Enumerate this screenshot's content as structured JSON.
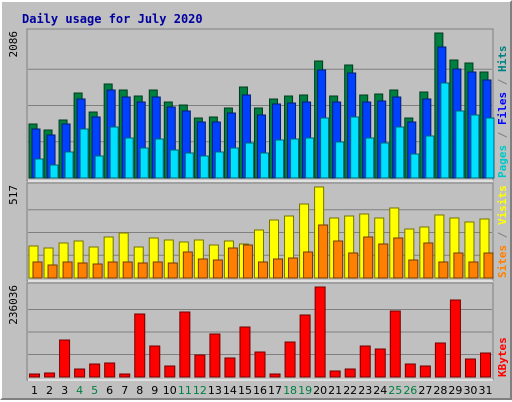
{
  "chart_data": {
    "title": "Daily usage for July 2020",
    "type": "bar",
    "days": [
      "1",
      "2",
      "3",
      "4",
      "5",
      "6",
      "7",
      "8",
      "9",
      "10",
      "11",
      "12",
      "13",
      "14",
      "15",
      "16",
      "17",
      "18",
      "19",
      "20",
      "21",
      "22",
      "23",
      "24",
      "25",
      "26",
      "27",
      "28",
      "29",
      "30",
      "31"
    ],
    "weekend_days": [
      "4",
      "5",
      "11",
      "12",
      "18",
      "19",
      "25",
      "26"
    ],
    "panels": [
      {
        "key": "hits",
        "max_label": "2086",
        "max": 2086,
        "right_labels": [
          {
            "text": "Pages",
            "color": "#00c8c8"
          },
          {
            "text": " / ",
            "color": "#808080"
          },
          {
            "text": "Files",
            "color": "#0000ff"
          },
          {
            "text": " / ",
            "color": "#808080"
          },
          {
            "text": "Hits",
            "color": "#008080"
          }
        ],
        "series": [
          {
            "name": "Hits",
            "color": "#008040",
            "values": [
              780,
              690,
              840,
              1230,
              950,
              1350,
              1260,
              1180,
              1270,
              1100,
              1050,
              870,
              880,
              1010,
              1310,
              1000,
              1130,
              1180,
              1200,
              1690,
              1180,
              1620,
              1200,
              1210,
              1270,
              860,
              1240,
              2086,
              1700,
              1650,
              1520
            ]
          },
          {
            "name": "Files",
            "color": "#0040ff",
            "values": [
              700,
              620,
              770,
              1130,
              880,
              1270,
              1160,
              1090,
              1170,
              1020,
              960,
              800,
              800,
              940,
              1200,
              910,
              1060,
              1080,
              1100,
              1560,
              1090,
              1510,
              1090,
              1110,
              1170,
              800,
              1140,
              1890,
              1570,
              1520,
              1410
            ]
          },
          {
            "name": "Pages",
            "color": "#00e0ff",
            "values": [
              270,
              190,
              380,
              710,
              320,
              740,
              580,
              430,
              560,
              400,
              360,
              320,
              380,
              430,
              510,
              360,
              550,
              560,
              570,
              860,
              520,
              880,
              570,
              510,
              740,
              340,
              600,
              1370,
              960,
              910,
              860
            ]
          }
        ]
      },
      {
        "key": "visits",
        "max_label": "517",
        "max": 517,
        "right_labels": [
          {
            "text": "Sites",
            "color": "#ff8000"
          },
          {
            "text": " / ",
            "color": "#808080"
          },
          {
            "text": "Visits",
            "color": "#ffff00"
          }
        ],
        "series": [
          {
            "name": "Visits",
            "color": "#ffff00",
            "values": [
              180,
              170,
              200,
              210,
              175,
              235,
              255,
              175,
              225,
              215,
              205,
              215,
              185,
              210,
              195,
              270,
              330,
              355,
              420,
              517,
              340,
              350,
              365,
              340,
              395,
              280,
              290,
              360,
              340,
              320,
              335
            ]
          },
          {
            "name": "Sites",
            "color": "#ff8000",
            "values": [
              90,
              75,
              90,
              85,
              80,
              90,
              90,
              85,
              90,
              85,
              150,
              110,
              105,
              170,
              185,
              90,
              110,
              115,
              145,
              300,
              210,
              140,
              235,
              195,
              230,
              100,
              200,
              90,
              140,
              90,
              140
            ]
          }
        ]
      },
      {
        "key": "kbytes",
        "max_label": "236036",
        "max": 236036,
        "right_labels": [
          {
            "text": "KBytes",
            "color": "#ff0000"
          }
        ],
        "series": [
          {
            "name": "KBytes",
            "color": "#ff0000",
            "values": [
              8000,
              11000,
              98000,
              22000,
              34000,
              36000,
              9000,
              165000,
              82000,
              28000,
              170000,
              58000,
              112000,
              50000,
              132000,
              66000,
              7000,
              92000,
              162000,
              236036,
              15000,
              22000,
              82000,
              73000,
              172000,
              34000,
              30000,
              88000,
              202000,
              48000,
              63000
            ]
          }
        ]
      }
    ]
  }
}
